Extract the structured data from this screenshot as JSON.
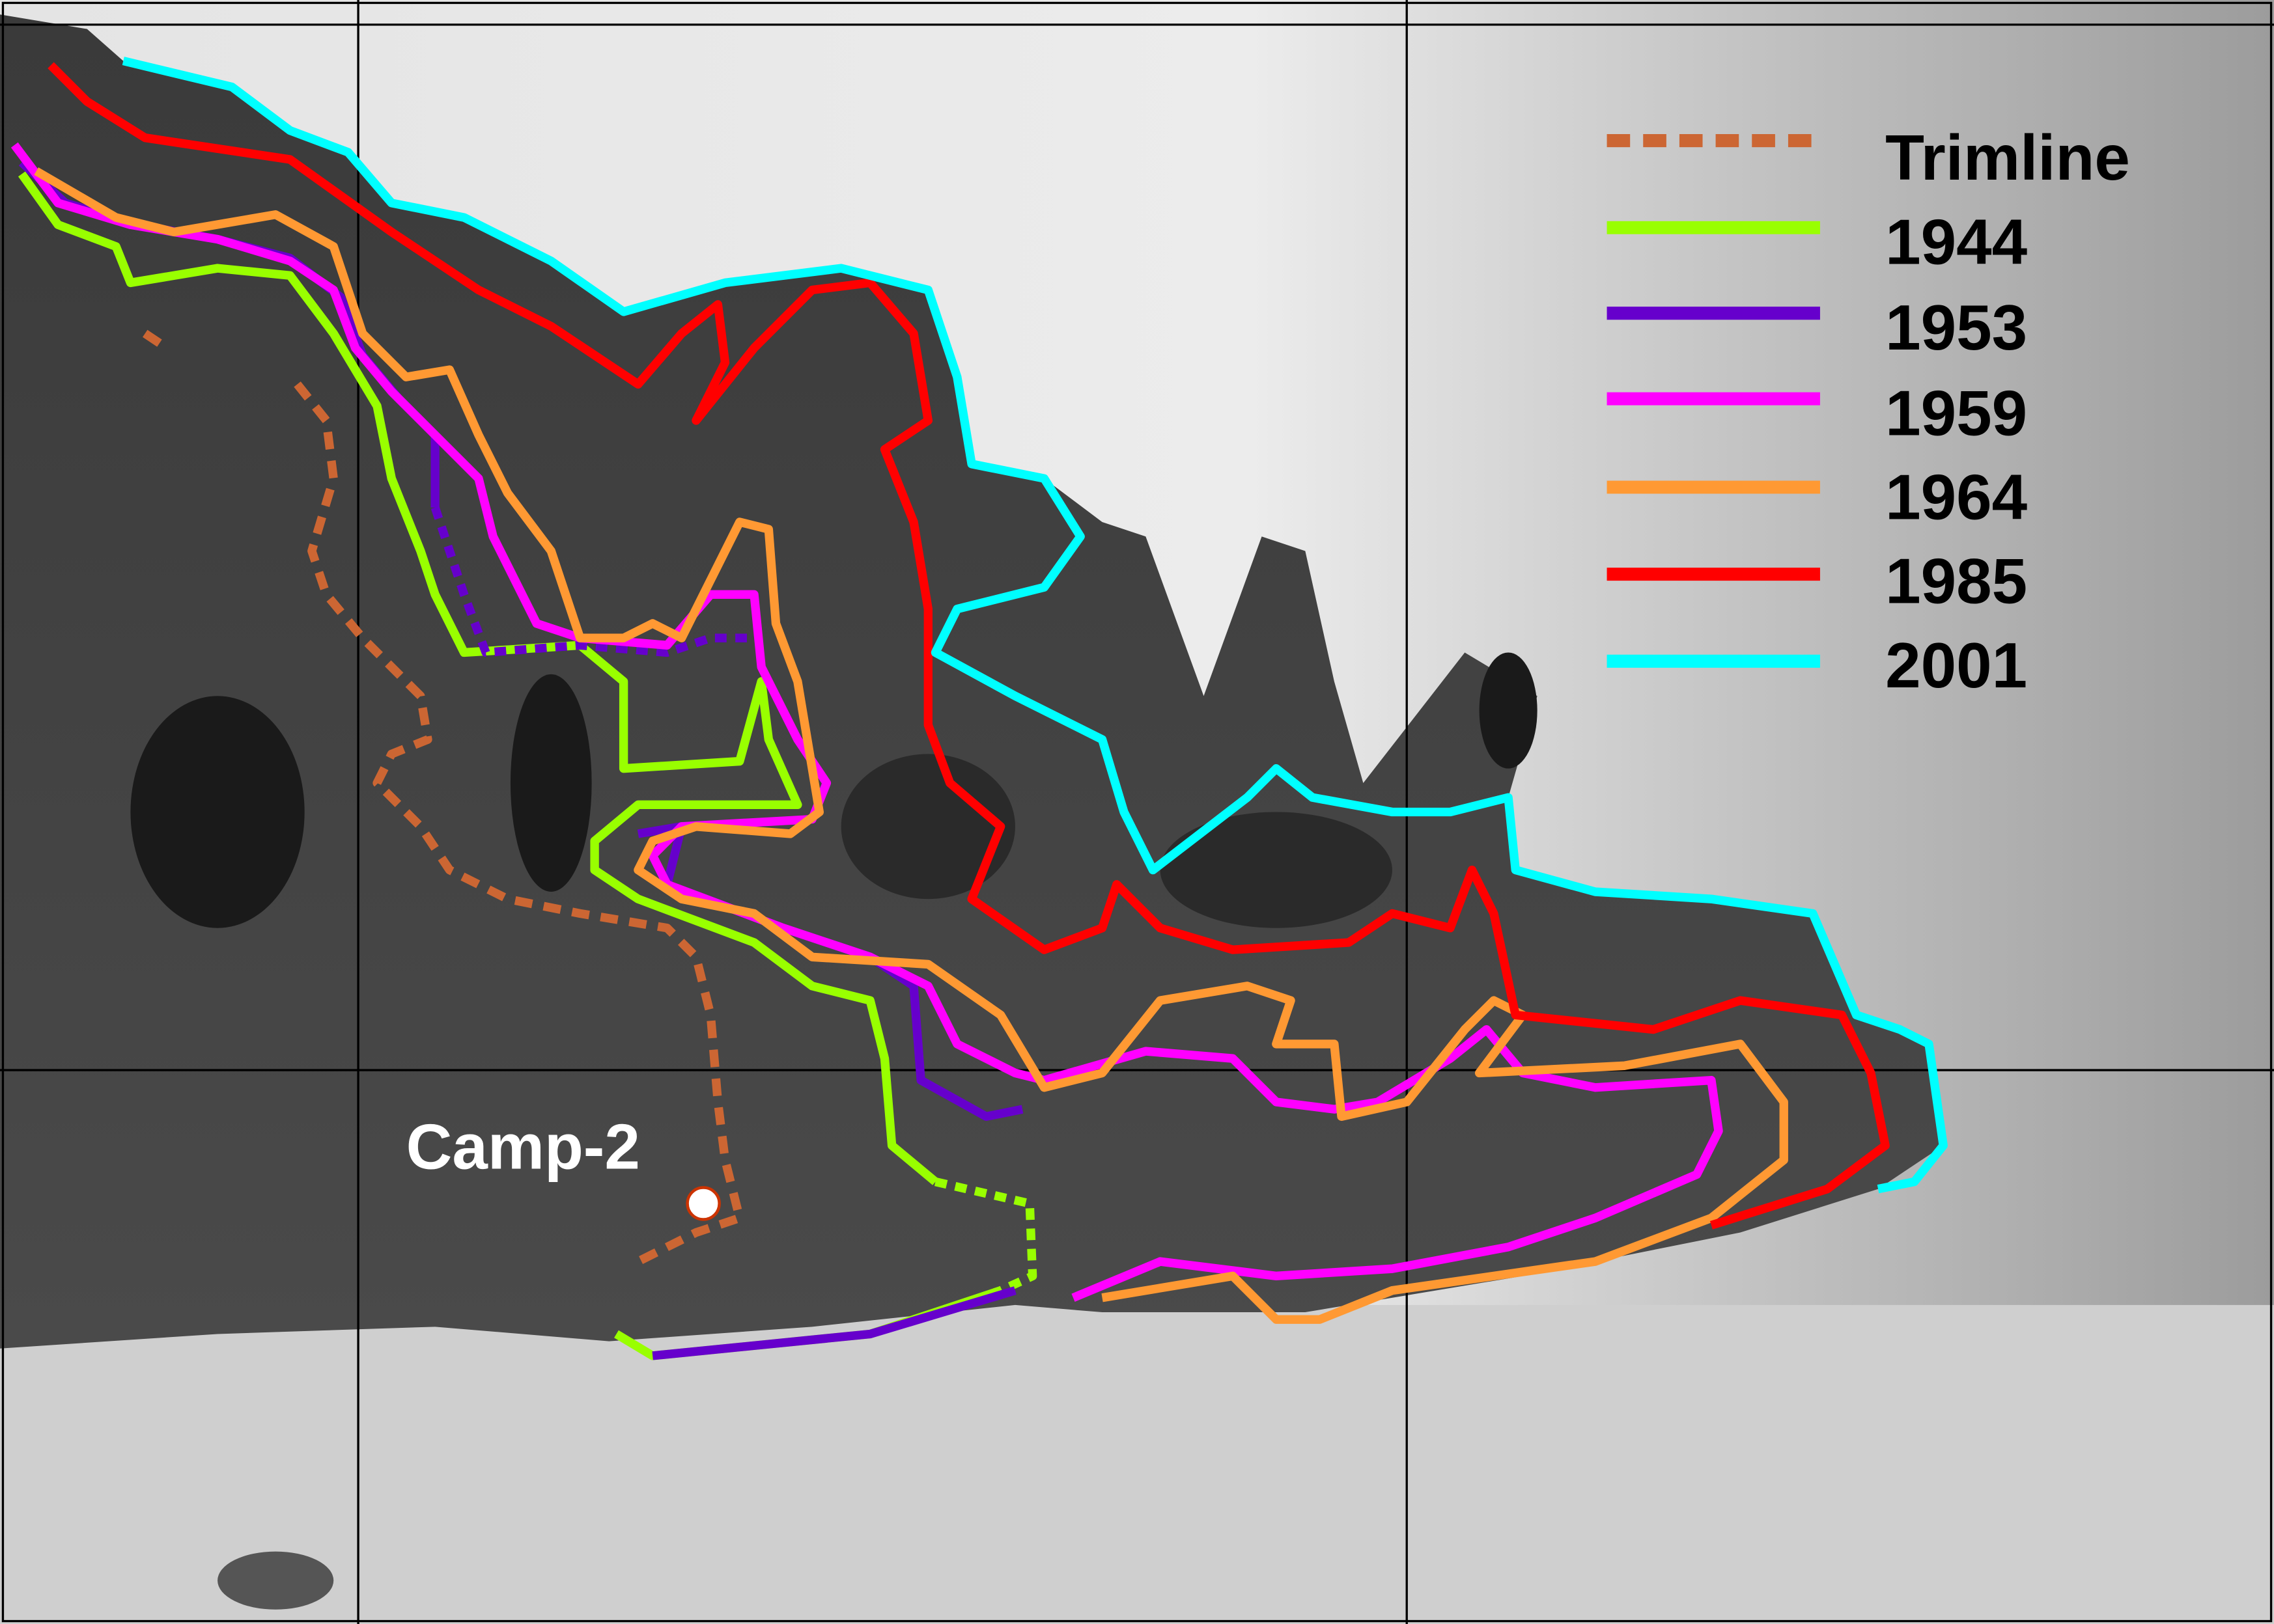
{
  "map": {
    "features": {
      "camp": {
        "label": "Camp-2",
        "marker_color": "#ffffff",
        "marker_outline": "#cc3300"
      }
    },
    "legend": {
      "placement": "top-right",
      "items": [
        {
          "label": "Trimline",
          "color": "#cc6633",
          "style": "dashed"
        },
        {
          "label": "1944",
          "color": "#99ff00",
          "style": "solid"
        },
        {
          "label": "1953",
          "color": "#6600cc",
          "style": "solid"
        },
        {
          "label": "1959",
          "color": "#ff00ff",
          "style": "solid"
        },
        {
          "label": "1964",
          "color": "#ff9933",
          "style": "solid"
        },
        {
          "label": "1985",
          "color": "#ff0000",
          "style": "solid"
        },
        {
          "label": "2001",
          "color": "#00ffff",
          "style": "solid"
        }
      ]
    },
    "basemap": "grayscale satellite image",
    "grid": true
  }
}
